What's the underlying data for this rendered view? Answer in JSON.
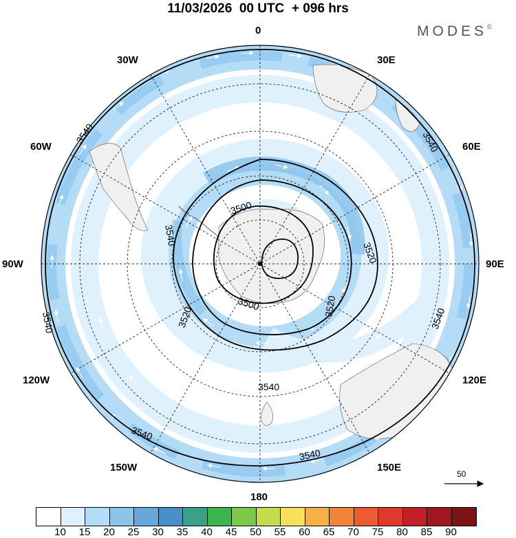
{
  "header": {
    "title": "11/03/2026  00 UTC  + 096 hrs",
    "brand": "MODES",
    "brand_mark": "©"
  },
  "map": {
    "projection": "south-polar-stereographic",
    "longitude_labels": {
      "0": "0",
      "30E": "30E",
      "60E": "60E",
      "90E": "90E",
      "120E": "120E",
      "150E": "150E",
      "180": "180",
      "150W": "150W",
      "120W": "120W",
      "90W": "90W",
      "60W": "60W",
      "30W": "30W"
    },
    "contour_labels": [
      "3540",
      "3540",
      "3540",
      "3540",
      "3540",
      "3540",
      "3540",
      "3540",
      "3520",
      "3520",
      "3520",
      "3500",
      "3500"
    ],
    "reference_vector": "50",
    "colors": {
      "ocean_shade_1": "#dff1fd",
      "ocean_shade_2": "#b4dcf7",
      "ocean_shade_3": "#8cc4ec",
      "land": "#f0f0f0",
      "contour": "#000000",
      "grid": "#222222"
    }
  },
  "legend": {
    "ticks": [
      "10",
      "15",
      "20",
      "25",
      "30",
      "35",
      "40",
      "45",
      "50",
      "55",
      "60",
      "65",
      "70",
      "75",
      "80",
      "85",
      "90"
    ],
    "colors": [
      "#ffffff",
      "#dff1fd",
      "#b4dcf7",
      "#8cc4ec",
      "#64a8dc",
      "#4a8fc8",
      "#3aa08a",
      "#3cb64c",
      "#7cc84a",
      "#c2dc4c",
      "#f8e05a",
      "#f6b046",
      "#f2843a",
      "#ec5c30",
      "#de3a2c",
      "#c41e26",
      "#a01820",
      "#7c1416"
    ]
  }
}
